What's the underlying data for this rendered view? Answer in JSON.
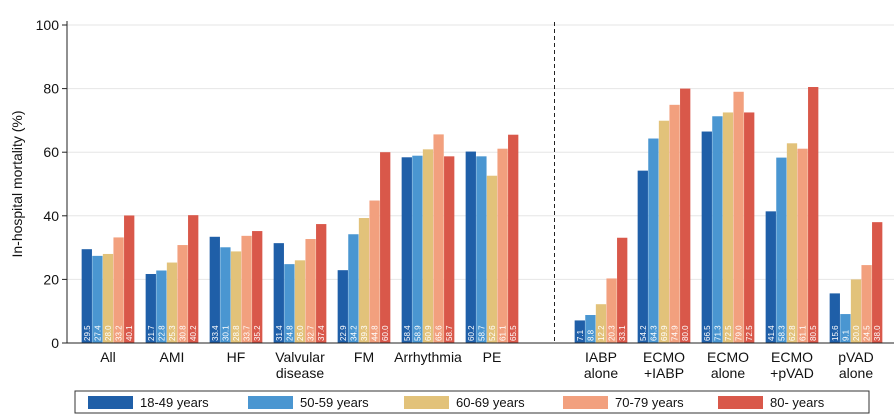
{
  "chart_data": {
    "type": "bar",
    "ylabel": "In-hospital mortality (%)",
    "ylim": [
      0,
      100
    ],
    "yticks": [
      "0",
      "20",
      "40",
      "60",
      "80",
      "100"
    ],
    "categories": [
      [
        "All"
      ],
      [
        "AMI"
      ],
      [
        "HF"
      ],
      [
        "Valvular",
        "disease"
      ],
      [
        "FM"
      ],
      [
        "Arrhythmia"
      ],
      [
        "PE"
      ],
      [
        "IABP",
        "alone"
      ],
      [
        "ECMO",
        "+IABP"
      ],
      [
        "ECMO",
        "alone"
      ],
      [
        "ECMO",
        "+pVAD"
      ],
      [
        "pVAD",
        "alone"
      ]
    ],
    "divider_after_category": 6,
    "legend_position": "bottom",
    "series": [
      {
        "name": "18-49 years",
        "color": "#1f5fa8",
        "values": [
          29.5,
          21.7,
          33.4,
          31.4,
          22.9,
          58.4,
          60.2,
          7.1,
          54.2,
          66.5,
          41.4,
          15.6
        ],
        "labels": [
          "29.5",
          "21.7",
          "33.4",
          "31.4",
          "22.9",
          "58.4",
          "60.2",
          "7.1",
          "54.2",
          "66.5",
          "41.4",
          "15.6"
        ]
      },
      {
        "name": "50-59 years",
        "color": "#4a96d1",
        "values": [
          27.4,
          22.8,
          30.1,
          24.8,
          34.2,
          58.9,
          58.7,
          8.8,
          64.3,
          71.3,
          58.3,
          9.1
        ],
        "labels": [
          "27.4",
          "22.8",
          "30.1",
          "24.8",
          "34.2",
          "58.9",
          "58.7",
          "8.8",
          "64.3",
          "71.3",
          "58.3",
          "9.1"
        ]
      },
      {
        "name": "60-69 years",
        "color": "#e2c27a",
        "values": [
          28.0,
          25.3,
          28.8,
          26.0,
          39.3,
          60.9,
          52.6,
          12.2,
          69.9,
          72.5,
          62.8,
          20.0
        ],
        "labels": [
          "28.0",
          "25.3",
          "28.8",
          "26.0",
          "39.3",
          "60.9",
          "52.6",
          "12.2",
          "69.9",
          "72.5",
          "62.8",
          "20.0"
        ]
      },
      {
        "name": "70-79 years",
        "color": "#f2a07e",
        "values": [
          33.2,
          30.8,
          33.7,
          32.7,
          44.8,
          65.6,
          61.1,
          20.3,
          74.9,
          79.0,
          61.1,
          24.5
        ],
        "labels": [
          "33.2",
          "30.8",
          "33.7",
          "32.7",
          "44.8",
          "65.6",
          "61.1",
          "20.3",
          "74.9",
          "79.0",
          "61.1",
          "24.5"
        ]
      },
      {
        "name": "80- years",
        "color": "#d9584a",
        "values": [
          40.1,
          40.2,
          35.2,
          37.4,
          60.0,
          58.7,
          65.5,
          33.1,
          80.0,
          72.5,
          80.5,
          38.0
        ],
        "labels": [
          "40.1",
          "40.2",
          "35.2",
          "37.4",
          "60.0",
          "58.7",
          "65.5",
          "33.1",
          "80.0",
          "72.5",
          "80.5",
          "38.0"
        ]
      }
    ]
  }
}
